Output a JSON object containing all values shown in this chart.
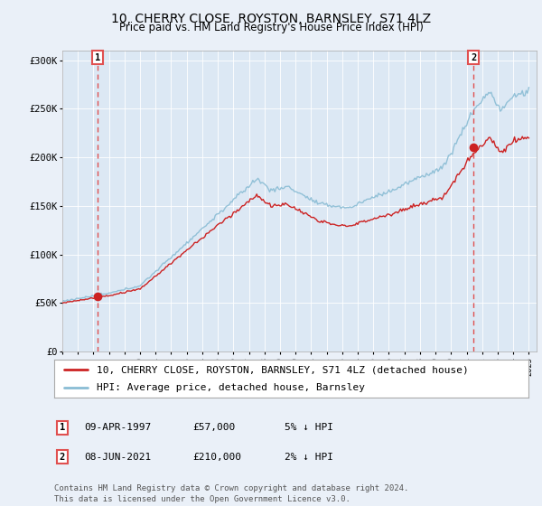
{
  "title": "10, CHERRY CLOSE, ROYSTON, BARNSLEY, S71 4LZ",
  "subtitle": "Price paid vs. HM Land Registry's House Price Index (HPI)",
  "ylim": [
    0,
    310000
  ],
  "yticks": [
    0,
    50000,
    100000,
    150000,
    200000,
    250000,
    300000
  ],
  "ytick_labels": [
    "£0",
    "£50K",
    "£100K",
    "£150K",
    "£200K",
    "£250K",
    "£300K"
  ],
  "sale1_date": 1997.27,
  "sale1_price": 57000,
  "sale2_date": 2021.44,
  "sale2_price": 210000,
  "hpi_color": "#89bcd4",
  "price_color": "#cc2222",
  "dashed_color": "#e05050",
  "bg_color": "#eaf0f8",
  "plot_bg": "#dce8f4",
  "grid_color": "#ffffff",
  "legend_label1": "10, CHERRY CLOSE, ROYSTON, BARNSLEY, S71 4LZ (detached house)",
  "legend_label2": "HPI: Average price, detached house, Barnsley",
  "table_row1": [
    "1",
    "09-APR-1997",
    "£57,000",
    "5% ↓ HPI"
  ],
  "table_row2": [
    "2",
    "08-JUN-2021",
    "£210,000",
    "2% ↓ HPI"
  ],
  "footnote": "Contains HM Land Registry data © Crown copyright and database right 2024.\nThis data is licensed under the Open Government Licence v3.0.",
  "title_fontsize": 10,
  "subtitle_fontsize": 8.5,
  "tick_fontsize": 7.5,
  "legend_fontsize": 8
}
